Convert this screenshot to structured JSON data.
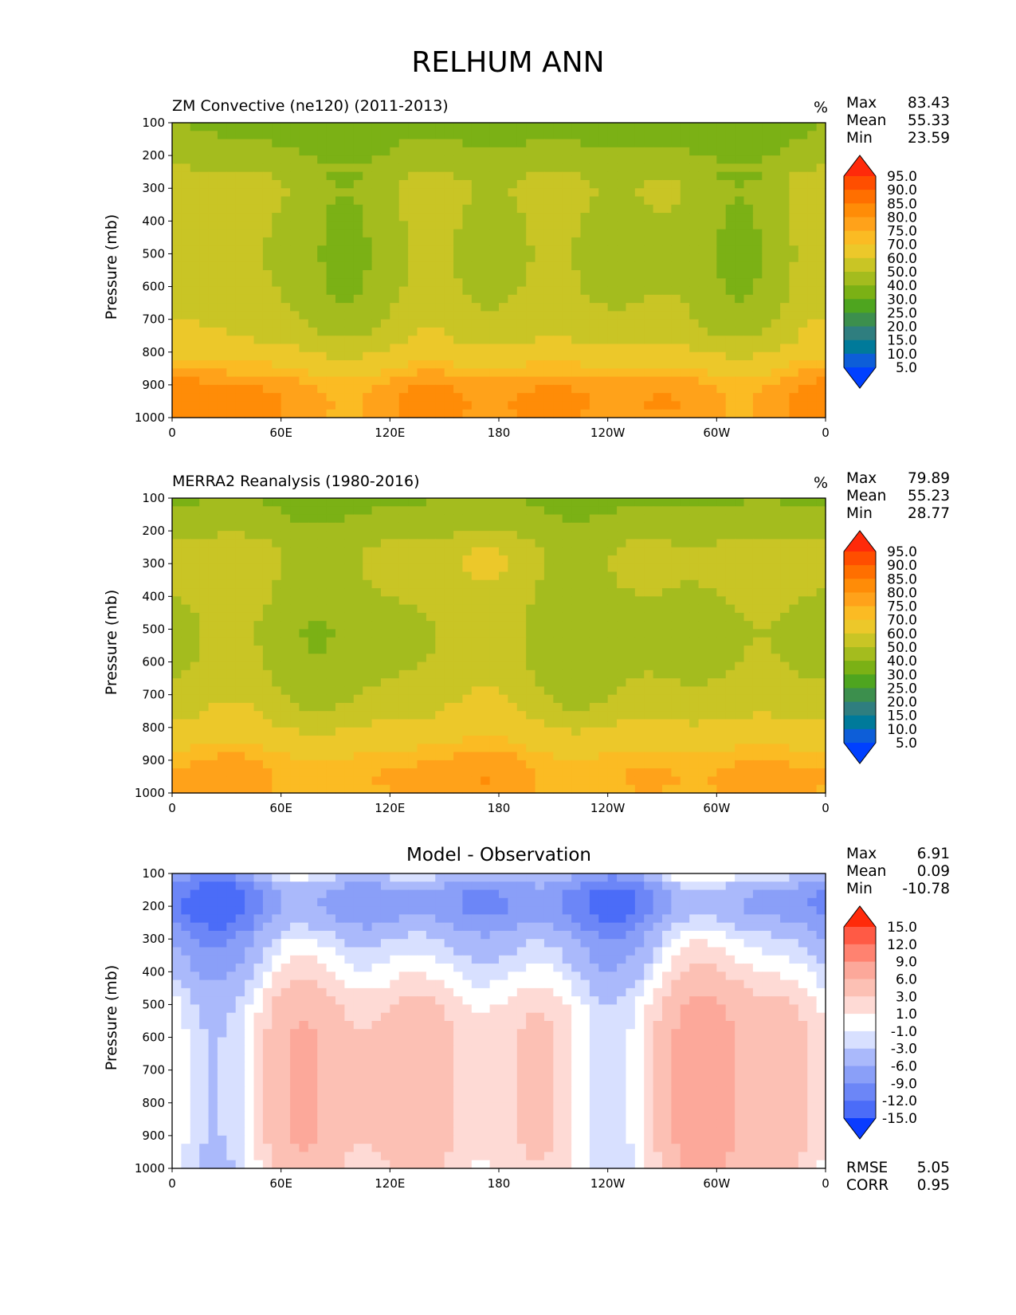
{
  "figure_title": "RELHUM ANN",
  "chart_data": [
    {
      "type": "heatmap",
      "id": "model",
      "title": "ZM Convective (ne120) (2011-2013)",
      "units": "%",
      "stats": {
        "max_label": "Max",
        "max": "83.43",
        "mean_label": "Mean",
        "mean": "55.33",
        "min_label": "Min",
        "min": "23.59"
      },
      "xlabel": "",
      "ylabel": "Pressure (mb)",
      "x_ticks": [
        "0",
        "60E",
        "120E",
        "180",
        "120W",
        "60W",
        "0"
      ],
      "y_ticks": [
        "100",
        "200",
        "300",
        "400",
        "500",
        "600",
        "700",
        "800",
        "900",
        "1000"
      ],
      "ylim": [
        100,
        1000
      ],
      "xlim": [
        0,
        360
      ],
      "levels": [
        "95.0",
        "90.0",
        "85.0",
        "80.0",
        "75.0",
        "70.0",
        "60.0",
        "50.0",
        "40.0",
        "30.0",
        "25.0",
        "20.0",
        "15.0",
        "10.0",
        "5.0"
      ],
      "level_colors": [
        "#ff2a0a",
        "#ff4e00",
        "#ff6f00",
        "#ff8c07",
        "#ffa21a",
        "#fbbb23",
        "#ecc82a",
        "#c9c525",
        "#a4bc1e",
        "#7bb115",
        "#4ea51f",
        "#3c8f4d",
        "#2f7e7f",
        "#007a9a",
        "#0d5ed8",
        "#0040ff"
      ],
      "profile_pressure": [
        100,
        150,
        200,
        250,
        300,
        400,
        500,
        600,
        700,
        800,
        850,
        900,
        950,
        1000
      ],
      "profile_rh": [
        35,
        38,
        42,
        47,
        50,
        48,
        47,
        48,
        52,
        62,
        71,
        78,
        80,
        79
      ]
    },
    {
      "type": "heatmap",
      "id": "obs",
      "title": "MERRA2 Reanalysis (1980-2016)",
      "units": "%",
      "stats": {
        "max_label": "Max",
        "max": "79.89",
        "mean_label": "Mean",
        "mean": "55.23",
        "min_label": "Min",
        "min": "28.77"
      },
      "xlabel": "",
      "ylabel": "Pressure (mb)",
      "x_ticks": [
        "0",
        "60E",
        "120E",
        "180",
        "120W",
        "60W",
        "0"
      ],
      "y_ticks": [
        "100",
        "200",
        "300",
        "400",
        "500",
        "600",
        "700",
        "800",
        "900",
        "1000"
      ],
      "ylim": [
        100,
        1000
      ],
      "xlim": [
        0,
        360
      ],
      "levels": [
        "95.0",
        "90.0",
        "85.0",
        "80.0",
        "75.0",
        "70.0",
        "60.0",
        "50.0",
        "40.0",
        "30.0",
        "25.0",
        "20.0",
        "15.0",
        "10.0",
        "5.0"
      ],
      "level_colors": [
        "#ff2a0a",
        "#ff4e00",
        "#ff6f00",
        "#ff8c07",
        "#ffa21a",
        "#fbbb23",
        "#ecc82a",
        "#c9c525",
        "#a4bc1e",
        "#7bb115",
        "#4ea51f",
        "#3c8f4d",
        "#2f7e7f",
        "#007a9a",
        "#0d5ed8",
        "#0040ff"
      ],
      "profile_pressure": [
        100,
        150,
        200,
        250,
        300,
        400,
        500,
        600,
        700,
        800,
        850,
        900,
        950,
        1000
      ],
      "profile_rh": [
        38,
        42,
        46,
        52,
        54,
        50,
        47,
        48,
        53,
        62,
        68,
        74,
        76,
        75
      ]
    },
    {
      "type": "heatmap",
      "id": "diff",
      "title": "Model - Observation",
      "units": "",
      "stats": {
        "max_label": "Max",
        "max": "6.91",
        "mean_label": "Mean",
        "mean": "0.09",
        "min_label": "Min",
        "min": "-10.78"
      },
      "metrics": {
        "rmse_label": "RMSE",
        "rmse": "5.05",
        "corr_label": "CORR",
        "corr": "0.95"
      },
      "xlabel": "",
      "ylabel": "Pressure (mb)",
      "x_ticks": [
        "0",
        "60E",
        "120E",
        "180",
        "120W",
        "60W",
        "0"
      ],
      "y_ticks": [
        "100",
        "200",
        "300",
        "400",
        "500",
        "600",
        "700",
        "800",
        "900",
        "1000"
      ],
      "ylim": [
        100,
        1000
      ],
      "xlim": [
        0,
        360
      ],
      "levels": [
        "15.0",
        "12.0",
        "9.0",
        "6.0",
        "3.0",
        "1.0",
        "-1.0",
        "-3.0",
        "-6.0",
        "-9.0",
        "-12.0",
        "-15.0"
      ],
      "level_colors": [
        "#ff2a0a",
        "#ff5a45",
        "#ff8270",
        "#fca89a",
        "#fcc0b4",
        "#fedad5",
        "#ffffff",
        "#d8e0ff",
        "#aab9fb",
        "#8a9ff8",
        "#6c86f7",
        "#4b6cf8",
        "#0a3cff"
      ],
      "profile_pressure": [
        100,
        150,
        200,
        250,
        300,
        400,
        500,
        600,
        700,
        800,
        900,
        1000
      ],
      "profile_diff": [
        -3,
        -8,
        -9,
        -7,
        -4,
        -1,
        2,
        3,
        3,
        3,
        3,
        2
      ]
    }
  ]
}
